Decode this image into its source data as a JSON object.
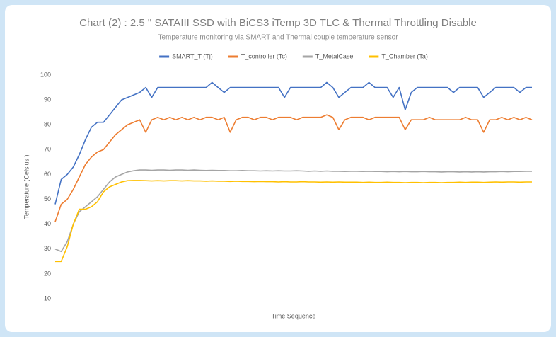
{
  "chart_data": {
    "type": "line",
    "title": "Chart (2) : 2.5 \" SATAIII SSD with BiCS3 iTemp 3D TLC & Thermal Throttling Disable",
    "subtitle": "Temperature monitoring via SMART and Thermal couple temperature sensor",
    "y_label": "Temperature  (Celsius )",
    "x_label": "Time Sequence",
    "ylim": [
      10,
      100
    ],
    "yticks": [
      10,
      20,
      30,
      40,
      50,
      60,
      70,
      80,
      90,
      100
    ],
    "grid": false,
    "legend": "top",
    "series": [
      {
        "name": "SMART_T (Tj)",
        "color": "#4472c4",
        "values": [
          48,
          58,
          60,
          63,
          68,
          74,
          79,
          81,
          81,
          84,
          87,
          90,
          91,
          92,
          93,
          95,
          91,
          95,
          95,
          95,
          95,
          95,
          95,
          95,
          95,
          95,
          97,
          95,
          93,
          95,
          95,
          95,
          95,
          95,
          95,
          95,
          95,
          95,
          91,
          95,
          95,
          95,
          95,
          95,
          95,
          97,
          95,
          91,
          93,
          95,
          95,
          95,
          97,
          95,
          95,
          95,
          91,
          95,
          86,
          93,
          95,
          95,
          95,
          95,
          95,
          95,
          93,
          95,
          95,
          95,
          95,
          91,
          93,
          95,
          95,
          95,
          95,
          93,
          95,
          95
        ]
      },
      {
        "name": "T_controller (Tc)",
        "color": "#ed7d31",
        "values": [
          41,
          48,
          50,
          54,
          59,
          64,
          67,
          69,
          70,
          73,
          76,
          78,
          80,
          81,
          82,
          77,
          82,
          83,
          82,
          83,
          82,
          83,
          82,
          83,
          82,
          83,
          83,
          82,
          83,
          77,
          82,
          83,
          83,
          82,
          83,
          83,
          82,
          83,
          83,
          83,
          82,
          83,
          83,
          83,
          83,
          84,
          83,
          78,
          82,
          83,
          83,
          83,
          82,
          83,
          83,
          83,
          83,
          83,
          78,
          82,
          82,
          82,
          83,
          82,
          82,
          82,
          82,
          82,
          83,
          82,
          82,
          77,
          82,
          82,
          83,
          82,
          83,
          82,
          83,
          82
        ]
      },
      {
        "name": "T_MetalCase",
        "color": "#a5a5a5",
        "values": [
          30,
          29,
          33,
          40,
          45,
          47,
          49,
          51,
          54,
          57,
          59,
          60,
          61,
          61.5,
          61.8,
          61.8,
          61.7,
          61.8,
          61.8,
          61.7,
          61.8,
          61.8,
          61.7,
          61.8,
          61.7,
          61.6,
          61.7,
          61.6,
          61.6,
          61.5,
          61.5,
          61.6,
          61.5,
          61.5,
          61.4,
          61.5,
          61.4,
          61.5,
          61.4,
          61.4,
          61.5,
          61.4,
          61.3,
          61.4,
          61.3,
          61.4,
          61.3,
          61.3,
          61.2,
          61.3,
          61.3,
          61.2,
          61.3,
          61.2,
          61.2,
          61.1,
          61.2,
          61.1,
          61.2,
          61.1,
          61.1,
          61.2,
          61.1,
          61.1,
          61.0,
          61.1,
          61.1,
          61.0,
          61.1,
          61.0,
          61.1,
          61.0,
          61.1,
          61.1,
          61.2,
          61.1,
          61.2,
          61.2,
          61.3,
          61.3
        ]
      },
      {
        "name": "T_Chamber (Ta)",
        "color": "#ffc000",
        "values": [
          25,
          25,
          31,
          40,
          46,
          46,
          47,
          49,
          53,
          55,
          56,
          57,
          57.5,
          57.6,
          57.6,
          57.5,
          57.4,
          57.5,
          57.4,
          57.5,
          57.5,
          57.4,
          57.5,
          57.4,
          57.4,
          57.3,
          57.4,
          57.3,
          57.3,
          57.2,
          57.3,
          57.2,
          57.2,
          57.1,
          57.2,
          57.1,
          57.1,
          57.0,
          57.1,
          57.0,
          57.0,
          57.1,
          57.0,
          57.0,
          56.9,
          57.0,
          56.9,
          57.0,
          56.9,
          56.9,
          56.9,
          56.8,
          56.9,
          56.8,
          56.8,
          56.9,
          56.8,
          56.8,
          56.7,
          56.8,
          56.8,
          56.7,
          56.8,
          56.8,
          56.7,
          56.8,
          56.8,
          56.9,
          56.8,
          56.9,
          56.9,
          56.8,
          56.9,
          57.0,
          56.9,
          57.0,
          57.0,
          56.9,
          57.0,
          57.0
        ]
      }
    ]
  }
}
